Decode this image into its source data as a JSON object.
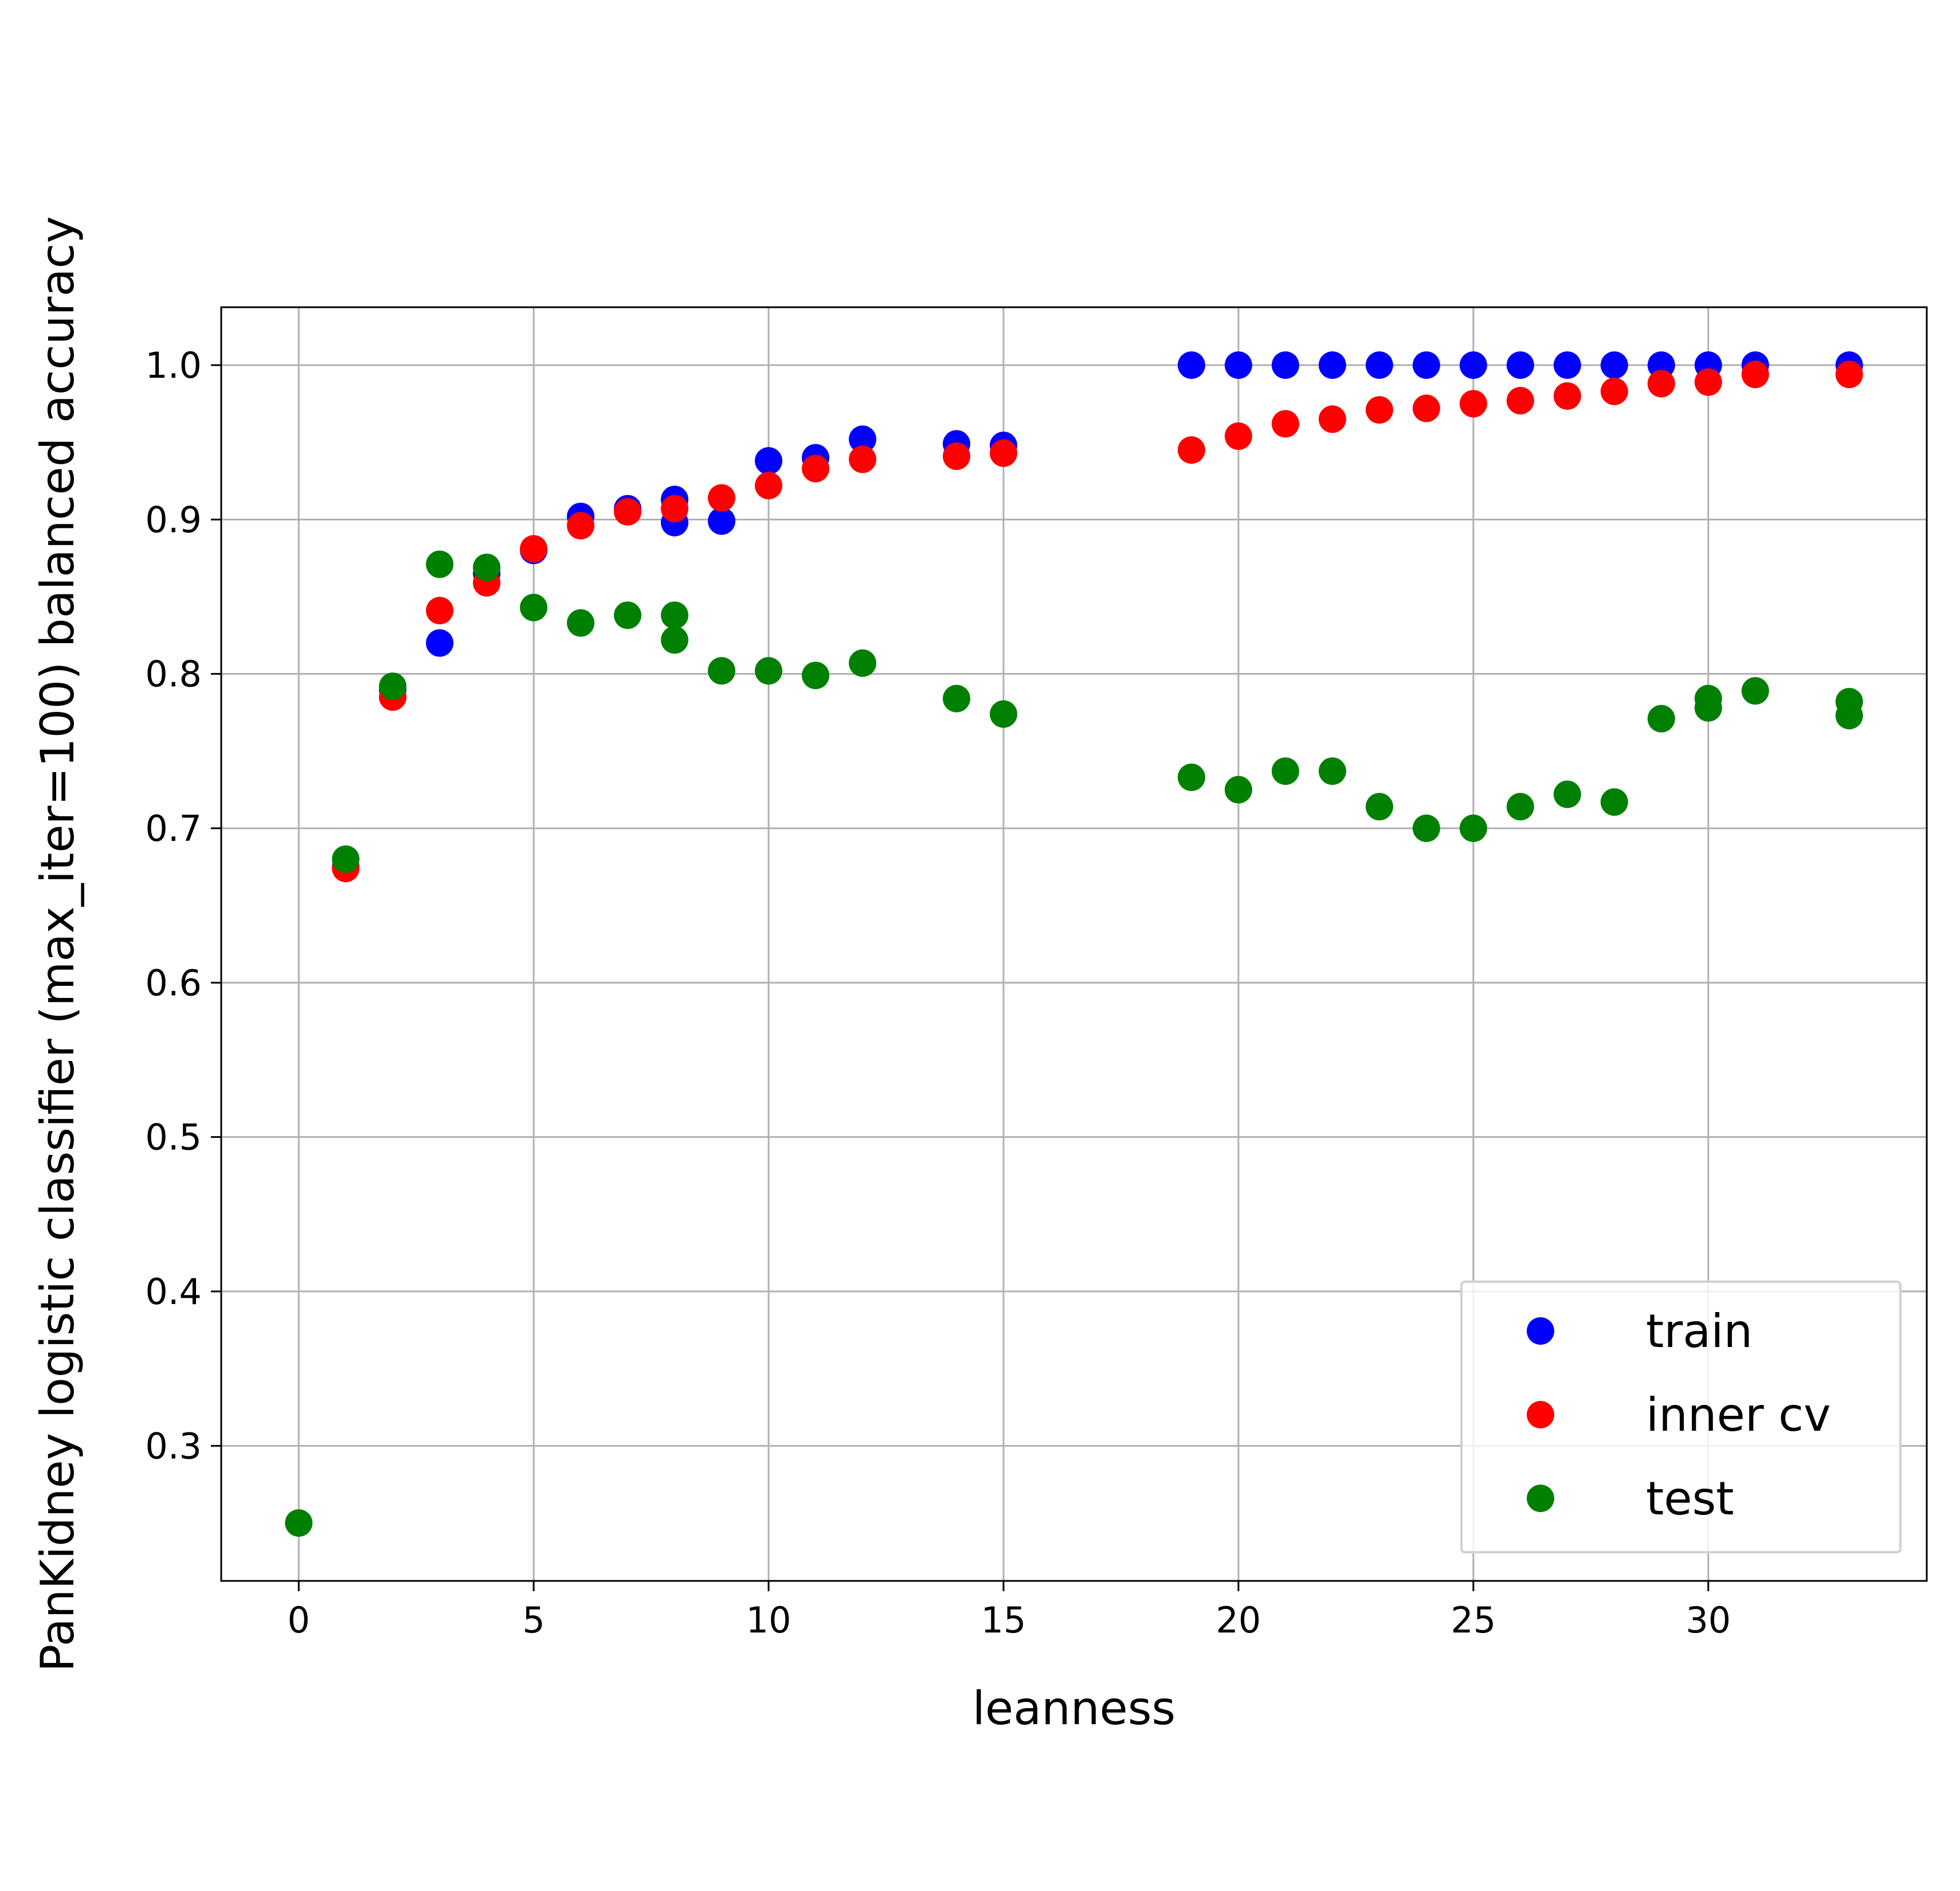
{
  "chart_data": {
    "type": "scatter",
    "title": "",
    "xlabel": "leanness",
    "ylabel": "PanKidney logistic classifier (max_iter=100) balanced accuracy",
    "xlim": [
      -1.65,
      34.65
    ],
    "ylim": [
      0.2125,
      1.0375
    ],
    "xticks": [
      0,
      5,
      10,
      15,
      20,
      25,
      30
    ],
    "xtick_labels": [
      "0",
      "5",
      "10",
      "15",
      "20",
      "25",
      "30"
    ],
    "yticks": [
      0.3,
      0.4,
      0.5,
      0.6,
      0.7,
      0.8,
      0.9,
      1.0
    ],
    "ytick_labels": [
      "0.3",
      "0.4",
      "0.5",
      "0.6",
      "0.7",
      "0.8",
      "0.9",
      "1.0"
    ],
    "grid": true,
    "legend_position": "lower-right",
    "series": [
      {
        "name": "train",
        "color": "#0000ff",
        "x": [
          1,
          2,
          3,
          4,
          5,
          6,
          7,
          8,
          8,
          9,
          10,
          11,
          12,
          14,
          15,
          19,
          20,
          21,
          22,
          23,
          24,
          25,
          26,
          27,
          28,
          29,
          30,
          31,
          33
        ],
        "y": [
          0.675,
          0.79,
          0.82,
          0.865,
          0.88,
          0.902,
          0.907,
          0.913,
          0.898,
          0.899,
          0.938,
          0.94,
          0.952,
          0.949,
          0.948,
          1.0,
          1.0,
          1.0,
          1.0,
          1.0,
          1.0,
          1.0,
          1.0,
          1.0,
          1.0,
          1.0,
          1.0,
          1.0,
          1.0
        ]
      },
      {
        "name": "inner cv",
        "color": "#ff0000",
        "x": [
          1,
          2,
          3,
          4,
          5,
          6,
          7,
          8,
          9,
          10,
          11,
          12,
          14,
          15,
          19,
          20,
          21,
          22,
          23,
          24,
          25,
          26,
          27,
          28,
          29,
          30,
          31,
          33
        ],
        "y": [
          0.674,
          0.785,
          0.841,
          0.859,
          0.881,
          0.896,
          0.905,
          0.907,
          0.914,
          0.922,
          0.933,
          0.939,
          0.941,
          0.943,
          0.945,
          0.954,
          0.962,
          0.965,
          0.971,
          0.972,
          0.975,
          0.977,
          0.98,
          0.983,
          0.988,
          0.989,
          0.994,
          0.994
        ]
      },
      {
        "name": "test",
        "color": "#008000",
        "x": [
          0,
          1,
          2,
          3,
          4,
          5,
          6,
          7,
          8,
          8,
          9,
          10,
          11,
          12,
          14,
          15,
          19,
          20,
          21,
          22,
          23,
          24,
          25,
          26,
          27,
          28,
          29,
          30,
          30,
          31,
          33,
          33
        ],
        "y": [
          0.25,
          0.68,
          0.792,
          0.871,
          0.869,
          0.843,
          0.833,
          0.838,
          0.838,
          0.822,
          0.802,
          0.802,
          0.799,
          0.807,
          0.784,
          0.774,
          0.733,
          0.725,
          0.737,
          0.737,
          0.714,
          0.7,
          0.7,
          0.714,
          0.722,
          0.717,
          0.771,
          0.784,
          0.778,
          0.789,
          0.782,
          0.773
        ]
      }
    ]
  }
}
